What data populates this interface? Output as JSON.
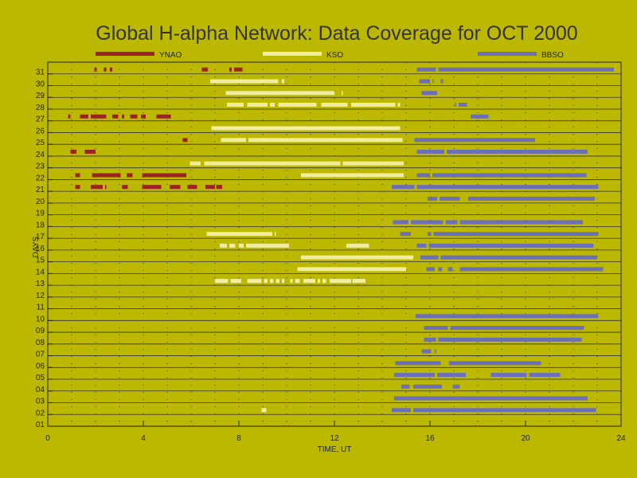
{
  "chart_data": {
    "type": "bar",
    "title": "Global H-alpha Network: Data Coverage for OCT 2000",
    "xlabel": "TIME, UT",
    "ylabel": "DAYS",
    "xlim": [
      0,
      24
    ],
    "ylim": [
      1,
      31
    ],
    "x_ticks": [
      "0",
      "4",
      "8",
      "12",
      "16",
      "20",
      "24"
    ],
    "y_ticks": [
      "01",
      "02",
      "03",
      "04",
      "05",
      "06",
      "07",
      "08",
      "09",
      "10",
      "11",
      "12",
      "13",
      "14",
      "15",
      "16",
      "17",
      "18",
      "19",
      "20",
      "21",
      "22",
      "23",
      "24",
      "25",
      "26",
      "27",
      "28",
      "29",
      "30",
      "31"
    ],
    "grid": true,
    "legend_placement": "top",
    "series": [
      {
        "name": "YNAO",
        "color": "#9b2323",
        "segments": [
          {
            "day": 31,
            "start": 1.95,
            "end": 2.05
          },
          {
            "day": 31,
            "start": 2.35,
            "end": 2.45
          },
          {
            "day": 31,
            "start": 2.6,
            "end": 2.7
          },
          {
            "day": 31,
            "start": 6.45,
            "end": 6.7
          },
          {
            "day": 31,
            "start": 7.6,
            "end": 7.7
          },
          {
            "day": 31,
            "start": 7.8,
            "end": 8.15
          },
          {
            "day": 27,
            "start": 0.85,
            "end": 0.95
          },
          {
            "day": 27,
            "start": 1.35,
            "end": 1.7
          },
          {
            "day": 27,
            "start": 1.8,
            "end": 2.45
          },
          {
            "day": 27,
            "start": 2.7,
            "end": 2.95
          },
          {
            "day": 27,
            "start": 3.1,
            "end": 3.2
          },
          {
            "day": 27,
            "start": 3.45,
            "end": 3.75
          },
          {
            "day": 27,
            "start": 3.9,
            "end": 4.1
          },
          {
            "day": 27,
            "start": 4.55,
            "end": 5.15
          },
          {
            "day": 25,
            "start": 5.65,
            "end": 5.85
          },
          {
            "day": 24,
            "start": 0.95,
            "end": 1.2
          },
          {
            "day": 24,
            "start": 1.55,
            "end": 2.0
          },
          {
            "day": 22,
            "start": 1.15,
            "end": 1.35
          },
          {
            "day": 22,
            "start": 1.85,
            "end": 3.05
          },
          {
            "day": 22,
            "start": 3.3,
            "end": 3.55
          },
          {
            "day": 22,
            "start": 3.95,
            "end": 5.8
          },
          {
            "day": 21,
            "start": 1.15,
            "end": 1.35
          },
          {
            "day": 21,
            "start": 1.8,
            "end": 2.3
          },
          {
            "day": 21,
            "start": 2.4,
            "end": 2.45
          },
          {
            "day": 21,
            "start": 3.1,
            "end": 3.35
          },
          {
            "day": 21,
            "start": 3.95,
            "end": 4.75
          },
          {
            "day": 21,
            "start": 5.1,
            "end": 5.55
          },
          {
            "day": 21,
            "start": 5.85,
            "end": 6.25
          },
          {
            "day": 21,
            "start": 6.6,
            "end": 7.0
          },
          {
            "day": 21,
            "start": 7.05,
            "end": 7.3
          }
        ]
      },
      {
        "name": "KSO",
        "color": "#f0eca0",
        "segments": [
          {
            "day": 30,
            "start": 6.8,
            "end": 9.65
          },
          {
            "day": 30,
            "start": 9.8,
            "end": 9.9
          },
          {
            "day": 29,
            "start": 7.45,
            "end": 12.0
          },
          {
            "day": 29,
            "start": 12.3,
            "end": 12.35
          },
          {
            "day": 28,
            "start": 7.5,
            "end": 8.2
          },
          {
            "day": 28,
            "start": 8.35,
            "end": 9.2
          },
          {
            "day": 28,
            "start": 9.3,
            "end": 9.5
          },
          {
            "day": 28,
            "start": 9.65,
            "end": 11.25
          },
          {
            "day": 28,
            "start": 11.45,
            "end": 12.55
          },
          {
            "day": 28,
            "start": 12.7,
            "end": 14.55
          },
          {
            "day": 28,
            "start": 14.65,
            "end": 14.75
          },
          {
            "day": 26,
            "start": 6.85,
            "end": 14.75
          },
          {
            "day": 25,
            "start": 7.25,
            "end": 8.3
          },
          {
            "day": 25,
            "start": 8.4,
            "end": 14.85
          },
          {
            "day": 23,
            "start": 5.95,
            "end": 6.4
          },
          {
            "day": 23,
            "start": 6.55,
            "end": 12.25
          },
          {
            "day": 23,
            "start": 12.35,
            "end": 14.9
          },
          {
            "day": 22,
            "start": 10.6,
            "end": 14.9
          },
          {
            "day": 17,
            "start": 6.65,
            "end": 9.4
          },
          {
            "day": 17,
            "start": 9.5,
            "end": 9.55
          },
          {
            "day": 16,
            "start": 7.2,
            "end": 7.5
          },
          {
            "day": 16,
            "start": 7.6,
            "end": 7.85
          },
          {
            "day": 16,
            "start": 8.0,
            "end": 8.2
          },
          {
            "day": 16,
            "start": 8.3,
            "end": 10.1
          },
          {
            "day": 16,
            "start": 12.5,
            "end": 13.45
          },
          {
            "day": 15,
            "start": 10.6,
            "end": 15.3
          },
          {
            "day": 14,
            "start": 10.45,
            "end": 15.0
          },
          {
            "day": 13,
            "start": 7.0,
            "end": 7.55
          },
          {
            "day": 13,
            "start": 7.65,
            "end": 8.1
          },
          {
            "day": 13,
            "start": 8.35,
            "end": 8.95
          },
          {
            "day": 13,
            "start": 9.05,
            "end": 9.2
          },
          {
            "day": 13,
            "start": 9.3,
            "end": 9.45
          },
          {
            "day": 13,
            "start": 9.55,
            "end": 9.7
          },
          {
            "day": 13,
            "start": 9.8,
            "end": 9.9
          },
          {
            "day": 13,
            "start": 10.15,
            "end": 10.25
          },
          {
            "day": 13,
            "start": 10.35,
            "end": 10.55
          },
          {
            "day": 13,
            "start": 10.7,
            "end": 11.2
          },
          {
            "day": 13,
            "start": 11.3,
            "end": 11.4
          },
          {
            "day": 13,
            "start": 11.5,
            "end": 11.65
          },
          {
            "day": 13,
            "start": 11.8,
            "end": 12.7
          },
          {
            "day": 13,
            "start": 12.75,
            "end": 13.3
          },
          {
            "day": 2,
            "start": 8.95,
            "end": 9.15
          }
        ]
      },
      {
        "name": "BBSO",
        "color": "#6b6fba",
        "segments": [
          {
            "day": 31,
            "start": 15.45,
            "end": 16.25
          },
          {
            "day": 31,
            "start": 16.35,
            "end": 23.7
          },
          {
            "day": 30,
            "start": 15.55,
            "end": 16.0
          },
          {
            "day": 30,
            "start": 16.1,
            "end": 16.15
          },
          {
            "day": 30,
            "start": 16.45,
            "end": 16.55
          },
          {
            "day": 29,
            "start": 15.65,
            "end": 16.3
          },
          {
            "day": 28,
            "start": 17.05,
            "end": 17.1
          },
          {
            "day": 28,
            "start": 17.2,
            "end": 17.55
          },
          {
            "day": 27,
            "start": 17.7,
            "end": 18.45
          },
          {
            "day": 25,
            "start": 15.35,
            "end": 20.4
          },
          {
            "day": 24,
            "start": 15.45,
            "end": 16.6
          },
          {
            "day": 24,
            "start": 16.7,
            "end": 22.6
          },
          {
            "day": 22,
            "start": 15.45,
            "end": 16.0
          },
          {
            "day": 22,
            "start": 16.1,
            "end": 22.55
          },
          {
            "day": 21,
            "start": 14.4,
            "end": 15.35
          },
          {
            "day": 21,
            "start": 15.45,
            "end": 23.05
          },
          {
            "day": 20,
            "start": 15.9,
            "end": 16.3
          },
          {
            "day": 20,
            "start": 16.4,
            "end": 17.25
          },
          {
            "day": 20,
            "start": 17.6,
            "end": 22.9
          },
          {
            "day": 18,
            "start": 14.45,
            "end": 15.1
          },
          {
            "day": 18,
            "start": 15.2,
            "end": 16.55
          },
          {
            "day": 18,
            "start": 16.65,
            "end": 17.15
          },
          {
            "day": 18,
            "start": 17.25,
            "end": 22.4
          },
          {
            "day": 17,
            "start": 14.75,
            "end": 15.2
          },
          {
            "day": 17,
            "start": 15.9,
            "end": 16.05
          },
          {
            "day": 17,
            "start": 16.15,
            "end": 23.05
          },
          {
            "day": 16,
            "start": 15.45,
            "end": 15.85
          },
          {
            "day": 16,
            "start": 15.95,
            "end": 22.85
          },
          {
            "day": 15,
            "start": 15.6,
            "end": 16.35
          },
          {
            "day": 15,
            "start": 16.45,
            "end": 23.0
          },
          {
            "day": 14,
            "start": 15.85,
            "end": 16.2
          },
          {
            "day": 14,
            "start": 16.35,
            "end": 16.5
          },
          {
            "day": 14,
            "start": 16.75,
            "end": 16.95
          },
          {
            "day": 14,
            "start": 17.25,
            "end": 23.25
          },
          {
            "day": 10,
            "start": 15.4,
            "end": 23.05
          },
          {
            "day": 9,
            "start": 15.75,
            "end": 16.75
          },
          {
            "day": 9,
            "start": 16.85,
            "end": 22.45
          },
          {
            "day": 8,
            "start": 15.75,
            "end": 16.25
          },
          {
            "day": 8,
            "start": 16.35,
            "end": 22.35
          },
          {
            "day": 7,
            "start": 15.65,
            "end": 16.05
          },
          {
            "day": 7,
            "start": 16.2,
            "end": 16.25
          },
          {
            "day": 6,
            "start": 14.55,
            "end": 16.45
          },
          {
            "day": 6,
            "start": 16.8,
            "end": 20.65
          },
          {
            "day": 5,
            "start": 14.5,
            "end": 16.2
          },
          {
            "day": 5,
            "start": 16.3,
            "end": 17.5
          },
          {
            "day": 5,
            "start": 18.55,
            "end": 20.05
          },
          {
            "day": 5,
            "start": 20.15,
            "end": 21.45
          },
          {
            "day": 4,
            "start": 14.8,
            "end": 15.15
          },
          {
            "day": 4,
            "start": 15.3,
            "end": 16.5
          },
          {
            "day": 4,
            "start": 16.95,
            "end": 17.25
          },
          {
            "day": 3,
            "start": 14.5,
            "end": 22.6
          },
          {
            "day": 2,
            "start": 14.4,
            "end": 15.2
          },
          {
            "day": 2,
            "start": 15.3,
            "end": 22.95
          }
        ]
      }
    ]
  }
}
